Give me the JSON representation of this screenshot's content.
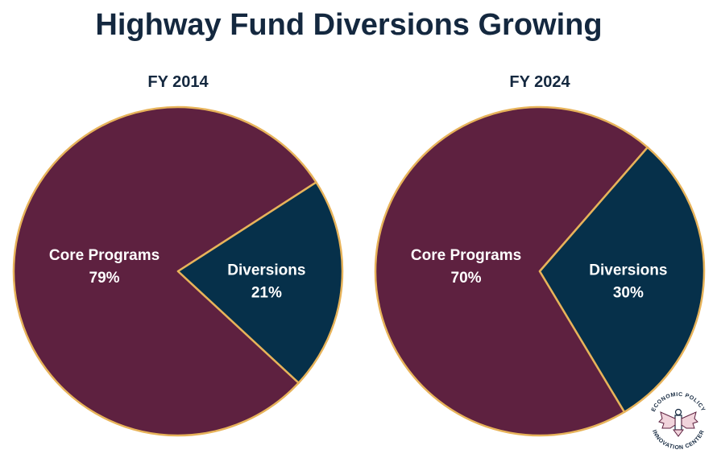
{
  "header": {
    "title": "Highway Fund Diversions Growing"
  },
  "colors": {
    "core": "#5e2140",
    "diversions": "#06304a",
    "edge": "#e7b35a",
    "title": "#14283f"
  },
  "chart_data": [
    {
      "type": "pie",
      "title": "FY 2014",
      "slices": [
        {
          "label": "Core Programs",
          "value": 79,
          "value_label": "79%"
        },
        {
          "label": "Diversions",
          "value": 21,
          "value_label": "21%"
        }
      ]
    },
    {
      "type": "pie",
      "title": "FY 2024",
      "slices": [
        {
          "label": "Core Programs",
          "value": 70,
          "value_label": "70%"
        },
        {
          "label": "Diversions",
          "value": 30,
          "value_label": "30%"
        }
      ]
    }
  ],
  "logo": {
    "top_text": "ECONOMIC POLICY",
    "bottom_text": "INNOVATION CENTER",
    "icon": "eagle-seal-icon"
  }
}
